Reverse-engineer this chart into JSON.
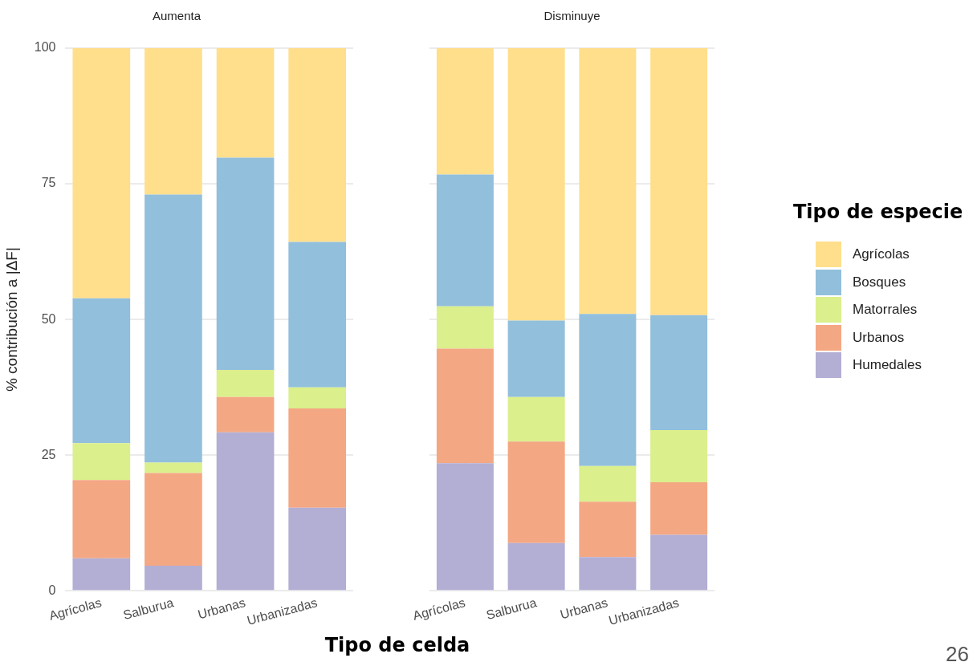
{
  "chart_data": [
    {
      "type": "bar",
      "title": "Aumenta",
      "xlabel": "Tipo de celda",
      "ylabel": "% contribución a |ΔF|",
      "stacked": true,
      "grid": true,
      "legend": "right",
      "legend_title": "Tipo de especie",
      "categories": [
        "Agrícolas",
        "Salburua",
        "Urbanas",
        "Urbanizadas"
      ],
      "ylim": [
        0,
        100
      ],
      "yticks": [
        0,
        25,
        50,
        75,
        100
      ],
      "series": [
        {
          "name": "Humedales",
          "color": "#b3aed4",
          "values": [
            6.0,
            4.6,
            29.2,
            15.3
          ]
        },
        {
          "name": "Urbanos",
          "color": "#f4a783",
          "values": [
            14.4,
            17.1,
            6.5,
            18.3
          ]
        },
        {
          "name": "Matorrales",
          "color": "#dbef8c",
          "values": [
            6.8,
            1.9,
            5.0,
            3.9
          ]
        },
        {
          "name": "Bosques",
          "color": "#92bfdc",
          "values": [
            26.7,
            49.4,
            39.1,
            26.8
          ]
        },
        {
          "name": "Agrícolas",
          "color": "#ffdf8c",
          "values": [
            46.1,
            27.0,
            20.2,
            35.7
          ]
        }
      ]
    },
    {
      "type": "bar",
      "title": "Disminuye",
      "stacked": true,
      "grid": true,
      "tick_labels": "x",
      "categories": [
        "Agrícolas",
        "Salburua",
        "Urbanas",
        "Urbanizadas"
      ],
      "ylim": [
        0,
        100
      ],
      "yticks": [
        0,
        25,
        50,
        75,
        100
      ],
      "annotations": [
        "26"
      ],
      "series": [
        {
          "color": "#b3aed4",
          "values": [
            23.5,
            8.8,
            6.2,
            10.3
          ]
        },
        {
          "color": "#f4a783",
          "values": [
            21.1,
            18.7,
            10.2,
            9.7
          ]
        },
        {
          "color": "#dbef8c",
          "values": [
            7.8,
            8.2,
            6.6,
            9.6
          ]
        },
        {
          "color": "#92bfdc",
          "values": [
            24.3,
            14.1,
            28.0,
            21.2
          ]
        },
        {
          "color": "#ffdf8c",
          "values": [
            23.3,
            50.2,
            49.0,
            49.2
          ]
        }
      ]
    }
  ]
}
